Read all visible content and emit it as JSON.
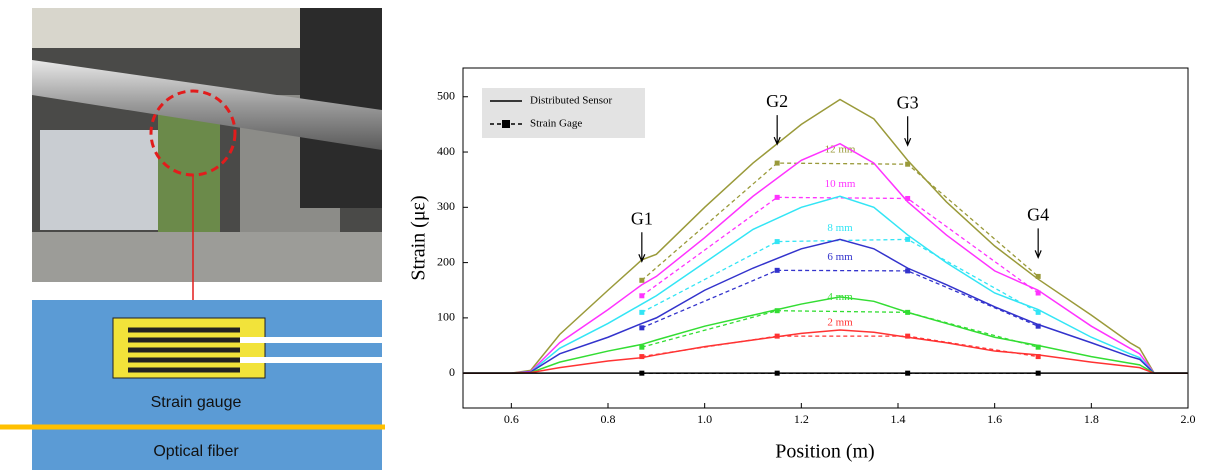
{
  "chart_data": {
    "type": "line",
    "xlabel": "Position (m)",
    "ylabel": "Strain (με)",
    "xlim": [
      0.5,
      2.0
    ],
    "xticks": [
      0.6,
      0.8,
      {
        "value": 1.0,
        "label": "1.0"
      },
      1.2,
      1.4,
      1.6,
      1.8,
      {
        "value": 2.0,
        "label": "2.0"
      }
    ],
    "ylim": [
      -63,
      552
    ],
    "yticks": [
      0,
      100,
      200,
      300,
      400,
      500
    ],
    "legend": [
      {
        "name": "Distributed Sensor"
      },
      {
        "name": "Strain Gage"
      }
    ],
    "gauge_labels": [
      "G1",
      "G2",
      "G3",
      "G4"
    ],
    "gauge_x": [
      0.87,
      1.15,
      1.42,
      1.69
    ],
    "x": [
      0.5,
      0.6,
      0.64,
      0.7,
      0.8,
      0.87,
      0.9,
      1.0,
      1.1,
      1.2,
      1.28,
      1.35,
      1.42,
      1.5,
      1.6,
      1.69,
      1.8,
      1.88,
      1.9,
      1.93,
      2.0
    ],
    "loads": [
      {
        "name": "12 mm",
        "color": "#9a9a3a",
        "distributed": [
          0,
          0,
          5,
          70,
          150,
          205,
          215,
          300,
          380,
          450,
          495,
          460,
          385,
          310,
          230,
          170,
          105,
          55,
          45,
          0,
          0
        ],
        "gauge": [
          168,
          380,
          378,
          175
        ]
      },
      {
        "name": "10 mm",
        "color": "#ff33ff",
        "distributed": [
          0,
          0,
          3,
          55,
          115,
          160,
          175,
          245,
          320,
          385,
          415,
          380,
          310,
          250,
          185,
          150,
          85,
          45,
          35,
          0,
          0
        ],
        "gauge": [
          140,
          318,
          316,
          145
        ]
      },
      {
        "name": "8 mm",
        "color": "#33e5f5",
        "distributed": [
          0,
          0,
          2,
          45,
          90,
          125,
          140,
          200,
          260,
          300,
          320,
          300,
          250,
          200,
          145,
          115,
          65,
          35,
          28,
          0,
          0
        ],
        "gauge": [
          110,
          238,
          242,
          110
        ]
      },
      {
        "name": "6 mm",
        "color": "#3333cc",
        "distributed": [
          0,
          0,
          2,
          35,
          65,
          90,
          100,
          150,
          190,
          225,
          242,
          225,
          190,
          160,
          120,
          88,
          55,
          30,
          25,
          0,
          0
        ],
        "gauge": [
          82,
          186,
          185,
          85
        ]
      },
      {
        "name": "4 mm",
        "color": "#33dd33",
        "distributed": [
          0,
          0,
          1,
          20,
          40,
          52,
          60,
          85,
          105,
          125,
          138,
          130,
          110,
          90,
          65,
          50,
          30,
          18,
          15,
          0,
          0
        ],
        "gauge": [
          47,
          113,
          110,
          47
        ]
      },
      {
        "name": "2 mm",
        "color": "#ff3333",
        "distributed": [
          0,
          0,
          1,
          10,
          22,
          28,
          33,
          48,
          60,
          72,
          78,
          74,
          65,
          55,
          40,
          33,
          20,
          12,
          10,
          0,
          0
        ],
        "gauge": [
          30,
          67,
          67,
          30
        ]
      },
      {
        "color": "#000000",
        "distributed": [
          0,
          0,
          0,
          0,
          0,
          0,
          0,
          0,
          0,
          0,
          0,
          0,
          0,
          0,
          0,
          0,
          0,
          0,
          0,
          0,
          0
        ],
        "gauge": [
          0,
          0,
          0,
          0
        ]
      }
    ]
  },
  "figure_left": {
    "gauge_label": "Strain gauge",
    "fiber_label": "Optical fiber"
  }
}
